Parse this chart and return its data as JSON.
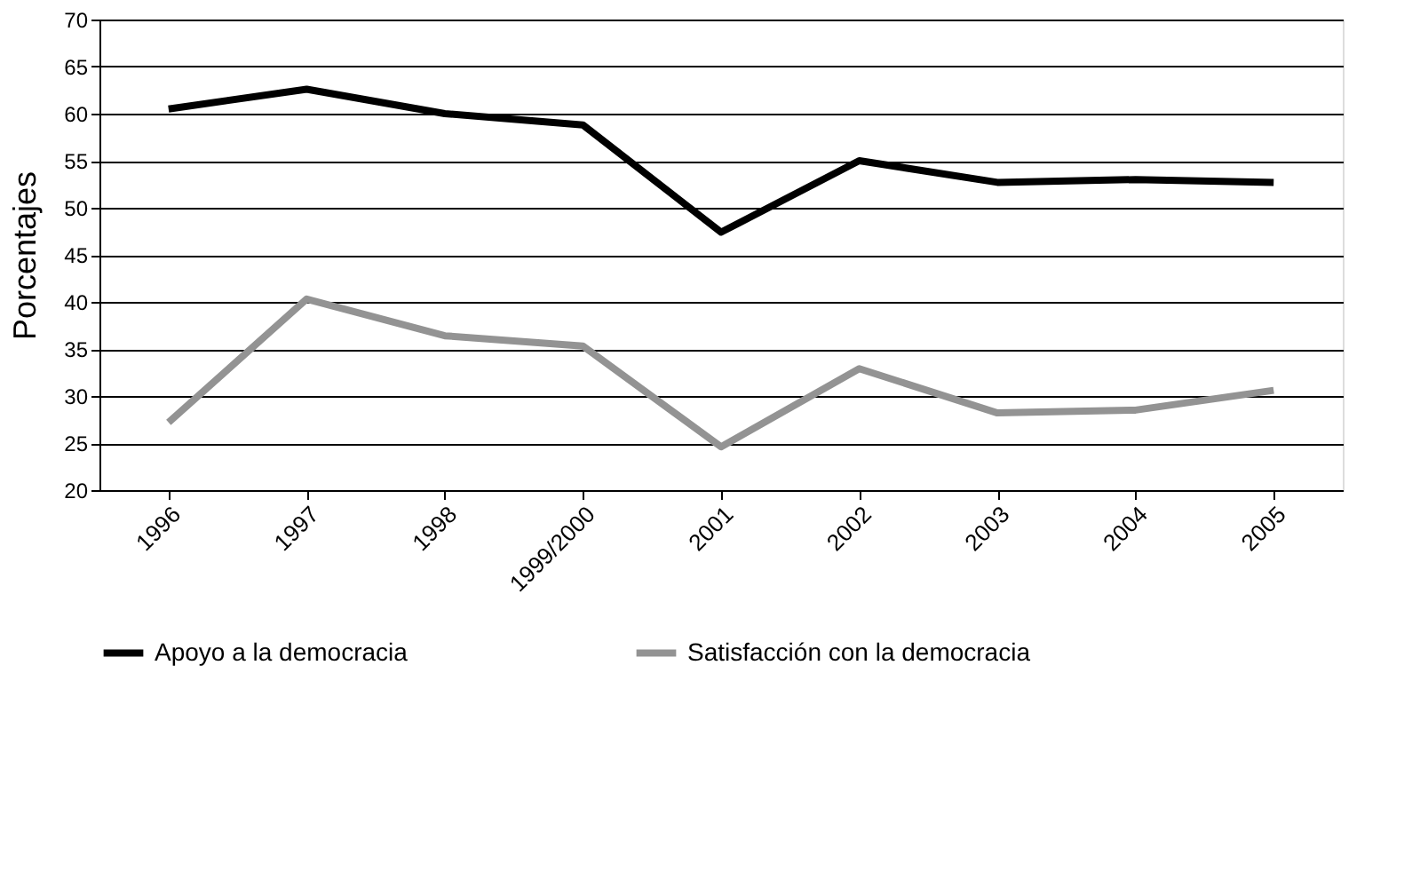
{
  "chart_data": {
    "type": "line",
    "ylabel": "Porcentajes",
    "categories": [
      "1996",
      "1997",
      "1998",
      "1999/2000",
      "2001",
      "2002",
      "2003",
      "2004",
      "2005"
    ],
    "series": [
      {
        "name": "Apoyo a la democracia",
        "color": "#000000",
        "values": [
          60.5,
          62.6,
          60.0,
          58.8,
          47.4,
          55.0,
          52.7,
          53.0,
          52.7
        ]
      },
      {
        "name": "Satisfacción con la democracia",
        "color": "#939393",
        "values": [
          27.2,
          40.3,
          36.4,
          35.3,
          24.6,
          32.9,
          28.2,
          28.5,
          30.6
        ]
      }
    ],
    "ylim": [
      20,
      70
    ],
    "yticks": [
      20,
      25,
      30,
      35,
      40,
      45,
      50,
      55,
      60,
      65,
      70
    ],
    "grid": "y",
    "legend": "bottom",
    "marker": "none",
    "line_style": "solid"
  }
}
